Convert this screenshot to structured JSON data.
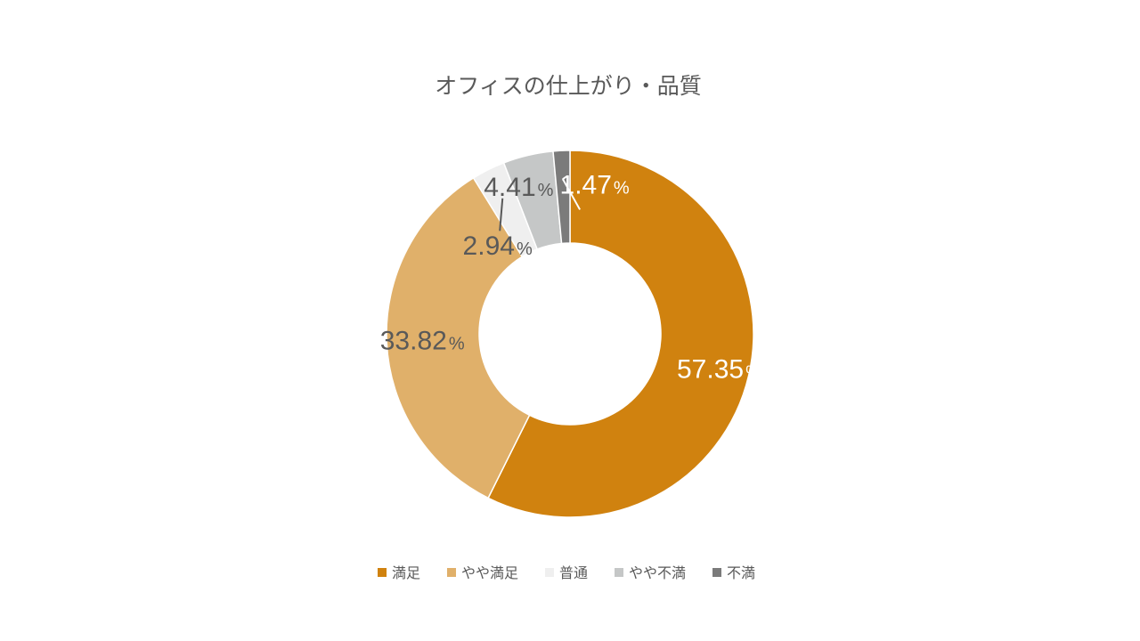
{
  "chart_data": {
    "type": "pie",
    "variant": "donut",
    "title": "オフィスの仕上がり・品質",
    "categories": [
      "満足",
      "やや満足",
      "普通",
      "やや不満",
      "不満"
    ],
    "values": [
      57.35,
      33.82,
      2.94,
      4.41,
      1.47
    ],
    "value_labels": [
      "57.35",
      "33.82",
      "2.94",
      "4.41",
      "1.47"
    ],
    "unit": "%",
    "colors": [
      "#D0820F",
      "#E0B06A",
      "#EFEFEF",
      "#C5C7C7",
      "#7B7B7B"
    ],
    "label_colors": [
      "#FFFFFF",
      "#595959",
      "#595959",
      "#595959",
      "#FFFFFF"
    ],
    "legend_position": "bottom",
    "start_angle_deg": 0,
    "direction": "clockwise"
  }
}
